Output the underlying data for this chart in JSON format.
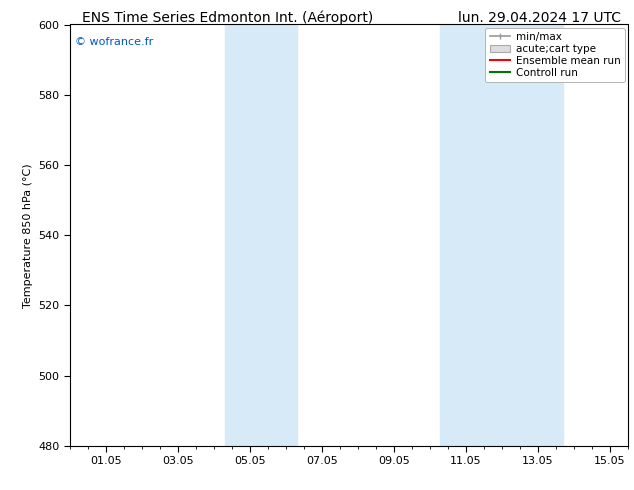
{
  "title_left": "ENS Time Series Edmonton Int. (Aéroport)",
  "title_right": "lun. 29.04.2024 17 UTC",
  "ylabel": "Temperature 850 hPa (°C)",
  "watermark": "© wofrance.fr",
  "watermark_color": "#0055cc",
  "ylim": [
    480,
    600
  ],
  "yticks": [
    480,
    500,
    520,
    540,
    560,
    580,
    600
  ],
  "xtick_labels": [
    "01.05",
    "03.05",
    "05.05",
    "07.05",
    "09.05",
    "11.05",
    "13.05",
    "15.05"
  ],
  "xtick_positions": [
    1.0,
    3.0,
    5.0,
    7.0,
    9.0,
    11.0,
    13.0,
    15.0
  ],
  "xmin": 0.0,
  "xmax": 15.5,
  "shaded_bands": [
    {
      "xmin": 4.3,
      "xmax": 6.3,
      "color": "#d6eaf8"
    },
    {
      "xmin": 10.3,
      "xmax": 13.7,
      "color": "#d6eaf8"
    }
  ],
  "background_color": "#ffffff",
  "plot_bg_color": "#ffffff",
  "title_fontsize": 10,
  "tick_fontsize": 8,
  "ylabel_fontsize": 8,
  "legend_fontsize": 7.5,
  "watermark_fontsize": 8
}
